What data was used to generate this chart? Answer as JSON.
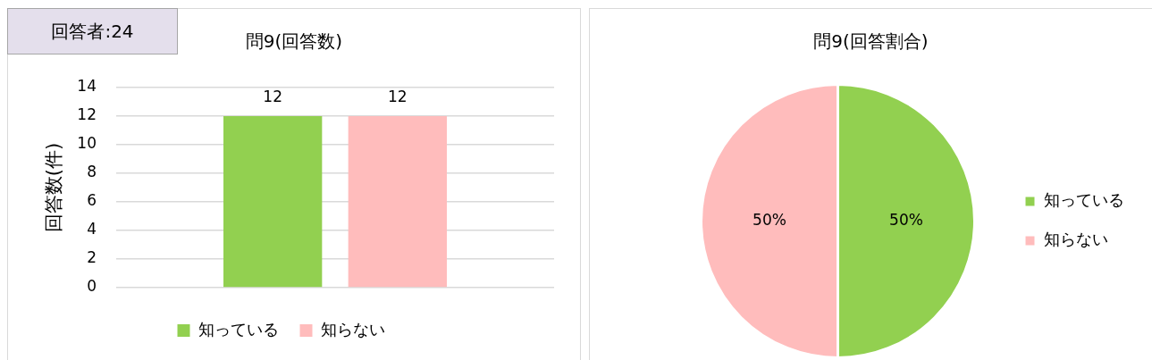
{
  "chart_data": [
    {
      "type": "bar",
      "title": "問9(回答数)",
      "ylabel": "回答数(件)",
      "annotations": [
        "回答者:24"
      ],
      "categories": [
        null
      ],
      "series": [
        {
          "name": "知っている",
          "color": "#92d050",
          "values": [
            12
          ]
        },
        {
          "name": "知らない",
          "color": "#ffbcbc",
          "values": [
            12
          ]
        }
      ],
      "ylim": [
        0,
        14
      ],
      "yticks": [
        0,
        2,
        4,
        6,
        8,
        10,
        12,
        14
      ],
      "grid": "y",
      "legend": "bottom",
      "data_labels": true
    },
    {
      "type": "pie",
      "title": "問9(回答割合)",
      "categories": [
        "知っている",
        "知らない"
      ],
      "values": [
        50,
        50
      ],
      "colors": [
        "#92d050",
        "#ffbcbc"
      ],
      "value_labels": [
        "50%",
        "50%"
      ],
      "legend": "right"
    }
  ]
}
